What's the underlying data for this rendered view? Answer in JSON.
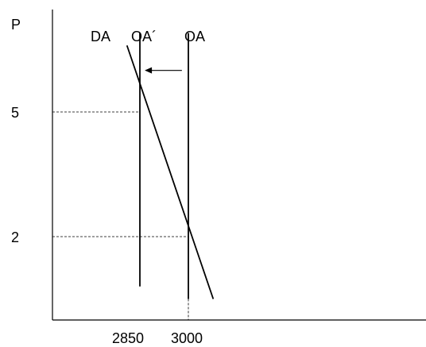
{
  "chart_data": {
    "type": "line",
    "title": "",
    "ylabel": "P",
    "xlabel": "",
    "xlim": [
      2700,
      3600
    ],
    "ylim": [
      0,
      7
    ],
    "x_ticks": [
      {
        "value": 2850,
        "label": "2850"
      },
      {
        "value": 3000,
        "label": "3000"
      }
    ],
    "y_ticks": [
      {
        "value": 5,
        "label": "5"
      },
      {
        "value": 2,
        "label": "2"
      }
    ],
    "series": [
      {
        "name": "DA",
        "kind": "demand",
        "points": [
          [
            2810,
            6.6
          ],
          [
            3077,
            0.5
          ]
        ]
      },
      {
        "name": "OA´",
        "kind": "vertical-supply",
        "points": [
          [
            2850,
            0.8
          ],
          [
            2850,
            6.9
          ]
        ]
      },
      {
        "name": "OA",
        "kind": "vertical-supply",
        "points": [
          [
            3000,
            0.5
          ],
          [
            3000,
            6.9
          ]
        ]
      }
    ],
    "equilibria": [
      {
        "x": 2850,
        "y": 5
      },
      {
        "x": 3000,
        "y": 2
      }
    ],
    "annotations": [
      {
        "type": "arrow",
        "from": [
          2980,
          6.0
        ],
        "to": [
          2865,
          6.0
        ]
      }
    ],
    "grid": false,
    "legend": "none"
  }
}
